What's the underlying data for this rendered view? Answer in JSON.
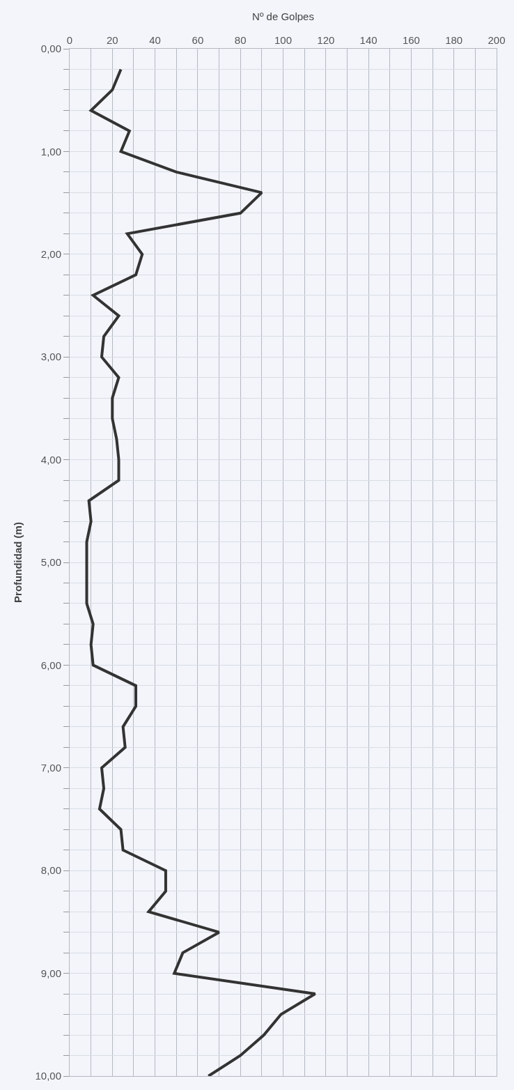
{
  "chart_data": {
    "type": "line",
    "xlabel": "Nº de Golpes",
    "ylabel": "Profundidad (m)",
    "series": [
      {
        "color": "#333333",
        "x": [
          24,
          20,
          10,
          28,
          24,
          50,
          90,
          80,
          27,
          34,
          31,
          11,
          23,
          16,
          15,
          23,
          20,
          20,
          22,
          23,
          23,
          9,
          10,
          8,
          8,
          8,
          8,
          11,
          10,
          11,
          31,
          31,
          25,
          26,
          15,
          16,
          14,
          24,
          25,
          45,
          45,
          37,
          70,
          53,
          49,
          115,
          99,
          91,
          80,
          65
        ],
        "values": [
          0.2,
          0.4,
          0.6,
          0.8,
          1.0,
          1.2,
          1.4,
          1.6,
          1.8,
          2.0,
          2.2,
          2.4,
          2.6,
          2.8,
          3.0,
          3.2,
          3.4,
          3.6,
          3.8,
          4.0,
          4.2,
          4.4,
          4.6,
          4.8,
          5.0,
          5.2,
          5.4,
          5.6,
          5.8,
          6.0,
          6.2,
          6.4,
          6.6,
          6.8,
          7.0,
          7.2,
          7.4,
          7.6,
          7.8,
          8.0,
          8.2,
          8.4,
          8.6,
          8.8,
          9.0,
          9.2,
          9.4,
          9.6,
          9.8,
          10.0
        ]
      }
    ],
    "xlim": [
      0,
      200
    ],
    "ylim": [
      10,
      0
    ],
    "xticks": [
      0,
      {
        "value": 10,
        "label": null
      },
      20,
      {
        "value": 30,
        "label": null
      },
      40,
      {
        "value": 50,
        "label": null
      },
      60,
      {
        "value": 70,
        "label": null
      },
      80,
      {
        "value": 90,
        "label": null
      },
      100,
      {
        "value": 110,
        "label": null
      },
      120,
      {
        "value": 130,
        "label": null
      },
      140,
      {
        "value": 150,
        "label": null
      },
      160,
      {
        "value": 170,
        "label": null
      },
      180,
      {
        "value": 190,
        "label": null
      },
      200
    ],
    "yticks": [
      {
        "value": 0,
        "label": "0,00"
      },
      {
        "value": 0.2,
        "label": null
      },
      {
        "value": 0.4,
        "label": null
      },
      {
        "value": 0.6,
        "label": null
      },
      {
        "value": 0.8,
        "label": null
      },
      {
        "value": 1,
        "label": "1,00"
      },
      {
        "value": 1.2,
        "label": null
      },
      {
        "value": 1.4,
        "label": null
      },
      {
        "value": 1.6,
        "label": null
      },
      {
        "value": 1.8,
        "label": null
      },
      {
        "value": 2,
        "label": "2,00"
      },
      {
        "value": 2.2,
        "label": null
      },
      {
        "value": 2.4,
        "label": null
      },
      {
        "value": 2.6,
        "label": null
      },
      {
        "value": 2.8,
        "label": null
      },
      {
        "value": 3,
        "label": "3,00"
      },
      {
        "value": 3.2,
        "label": null
      },
      {
        "value": 3.4,
        "label": null
      },
      {
        "value": 3.6,
        "label": null
      },
      {
        "value": 3.8,
        "label": null
      },
      {
        "value": 4,
        "label": "4,00"
      },
      {
        "value": 4.2,
        "label": null
      },
      {
        "value": 4.4,
        "label": null
      },
      {
        "value": 4.6,
        "label": null
      },
      {
        "value": 4.8,
        "label": null
      },
      {
        "value": 5,
        "label": "5,00"
      },
      {
        "value": 5.2,
        "label": null
      },
      {
        "value": 5.4,
        "label": null
      },
      {
        "value": 5.6,
        "label": null
      },
      {
        "value": 5.8,
        "label": null
      },
      {
        "value": 6,
        "label": "6,00"
      },
      {
        "value": 6.2,
        "label": null
      },
      {
        "value": 6.4,
        "label": null
      },
      {
        "value": 6.6,
        "label": null
      },
      {
        "value": 6.8,
        "label": null
      },
      {
        "value": 7,
        "label": "7,00"
      },
      {
        "value": 7.2,
        "label": null
      },
      {
        "value": 7.4,
        "label": null
      },
      {
        "value": 7.6,
        "label": null
      },
      {
        "value": 7.8,
        "label": null
      },
      {
        "value": 8,
        "label": "8,00"
      },
      {
        "value": 8.2,
        "label": null
      },
      {
        "value": 8.4,
        "label": null
      },
      {
        "value": 8.6,
        "label": null
      },
      {
        "value": 8.8,
        "label": null
      },
      {
        "value": 9,
        "label": "9,00"
      },
      {
        "value": 9.2,
        "label": null
      },
      {
        "value": 9.4,
        "label": null
      },
      {
        "value": 9.6,
        "label": null
      },
      {
        "value": 9.8,
        "label": null
      },
      {
        "value": 10,
        "label": "10,00"
      }
    ],
    "grid": true,
    "marker": "none",
    "line_style": "solid"
  }
}
